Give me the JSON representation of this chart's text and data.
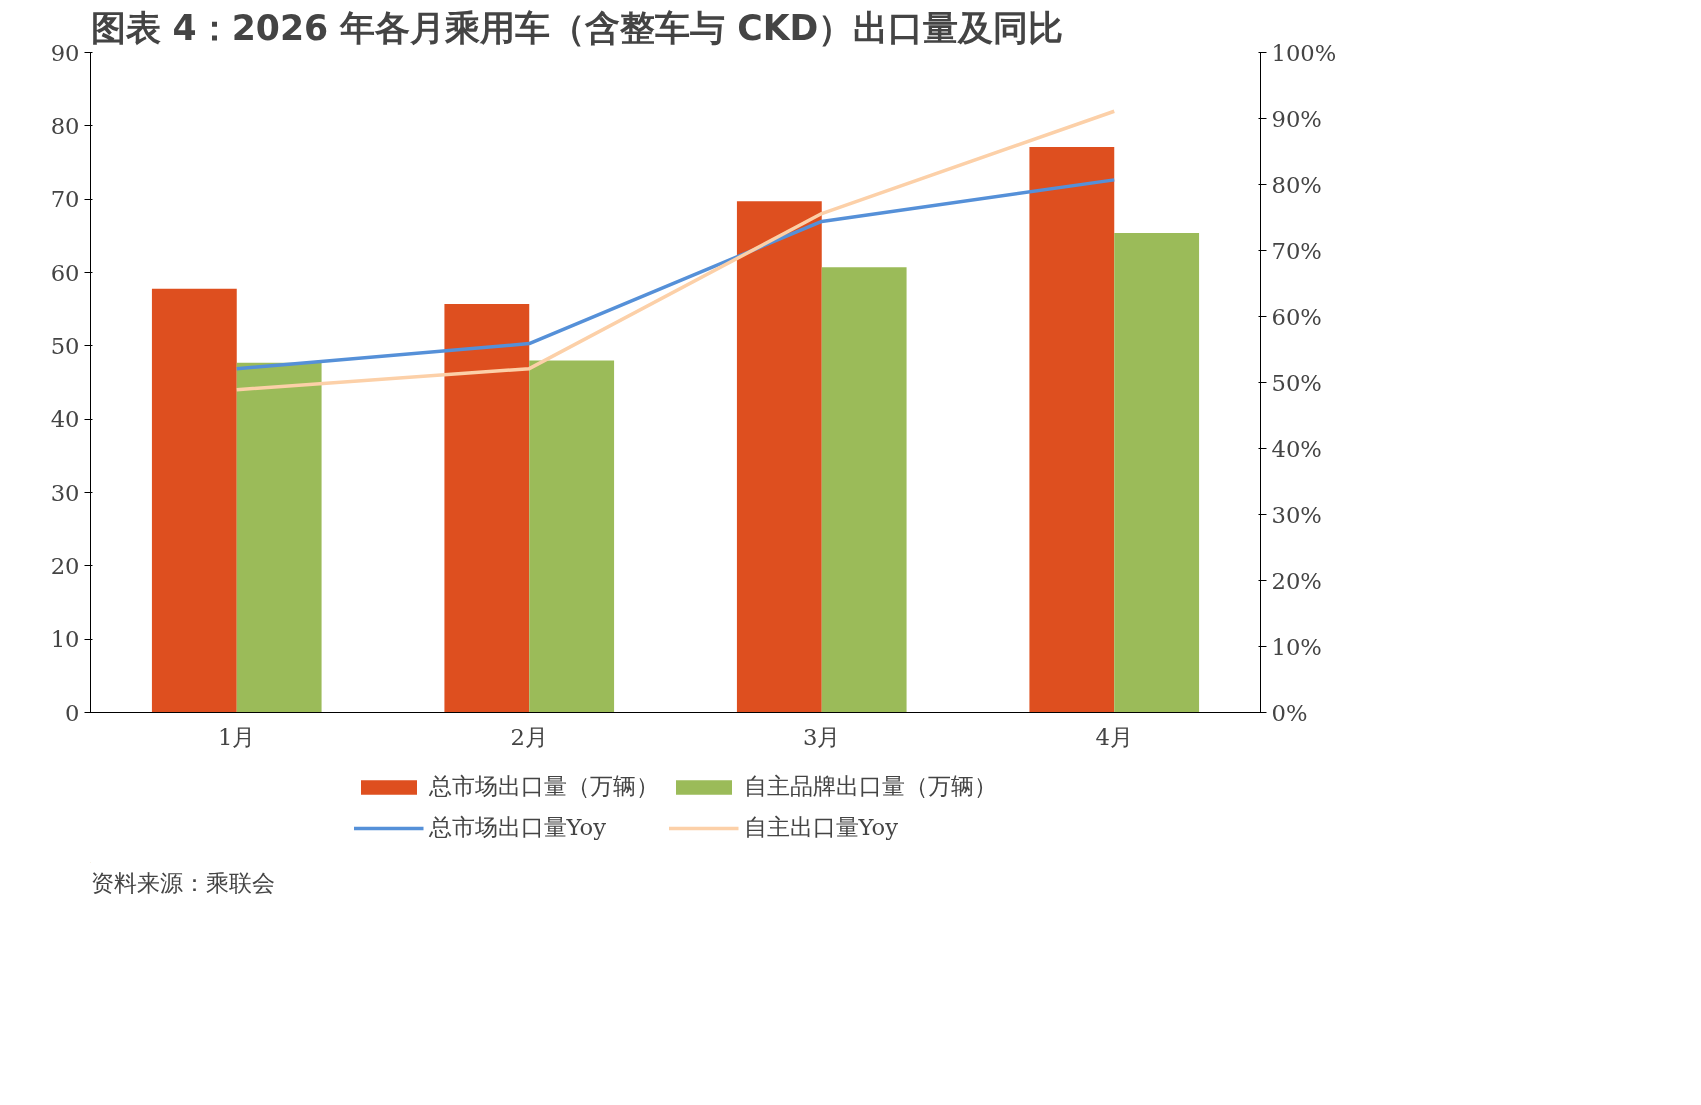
{
  "chart_data": {
    "type": "bar",
    "title": "图表 4：2026 年各月乘用车（含整车与 CKD）出口量及同比",
    "categories": [
      "1月",
      "2月",
      "3月",
      "4月"
    ],
    "series": [
      {
        "name": "总市场出口量（万辆）",
        "color": "#de4f1f",
        "values": [
          57.8,
          55.7,
          69.7,
          77.1
        ]
      },
      {
        "name": "自主品牌出口量（万辆）",
        "color": "#9bbb59",
        "values": [
          47.7,
          48.0,
          60.7,
          65.4
        ]
      },
      {
        "name": "总市场出口量Yoy",
        "type": "line",
        "axis": "y2",
        "color": "#5590d8",
        "values": [
          52.1,
          55.9,
          74.4,
          80.7
        ]
      },
      {
        "name": "自主出口量Yoy",
        "type": "line",
        "axis": "y2",
        "color": "#fcd0a8",
        "values": [
          48.9,
          52.1,
          75.6,
          91.1
        ]
      }
    ],
    "ylim": [
      0,
      90
    ],
    "yticks": [
      0,
      10,
      20,
      30,
      40,
      50,
      60,
      70,
      80,
      90
    ],
    "y2lim": [
      0,
      100
    ],
    "y2ticks": [
      {
        "value": 0,
        "label": "0%"
      },
      {
        "value": 10,
        "label": "10%"
      },
      {
        "value": 20,
        "label": "20%"
      },
      {
        "value": 30,
        "label": "30%"
      },
      {
        "value": 40,
        "label": "40%"
      },
      {
        "value": 50,
        "label": "50%"
      },
      {
        "value": 60,
        "label": "60%"
      },
      {
        "value": 70,
        "label": "70%"
      },
      {
        "value": 80,
        "label": "80%"
      },
      {
        "value": 90,
        "label": "90%"
      },
      {
        "value": 100,
        "label": "100%"
      }
    ],
    "grid": false,
    "legend": "bottom",
    "annotations": [
      "资料来源：乘联会"
    ]
  }
}
